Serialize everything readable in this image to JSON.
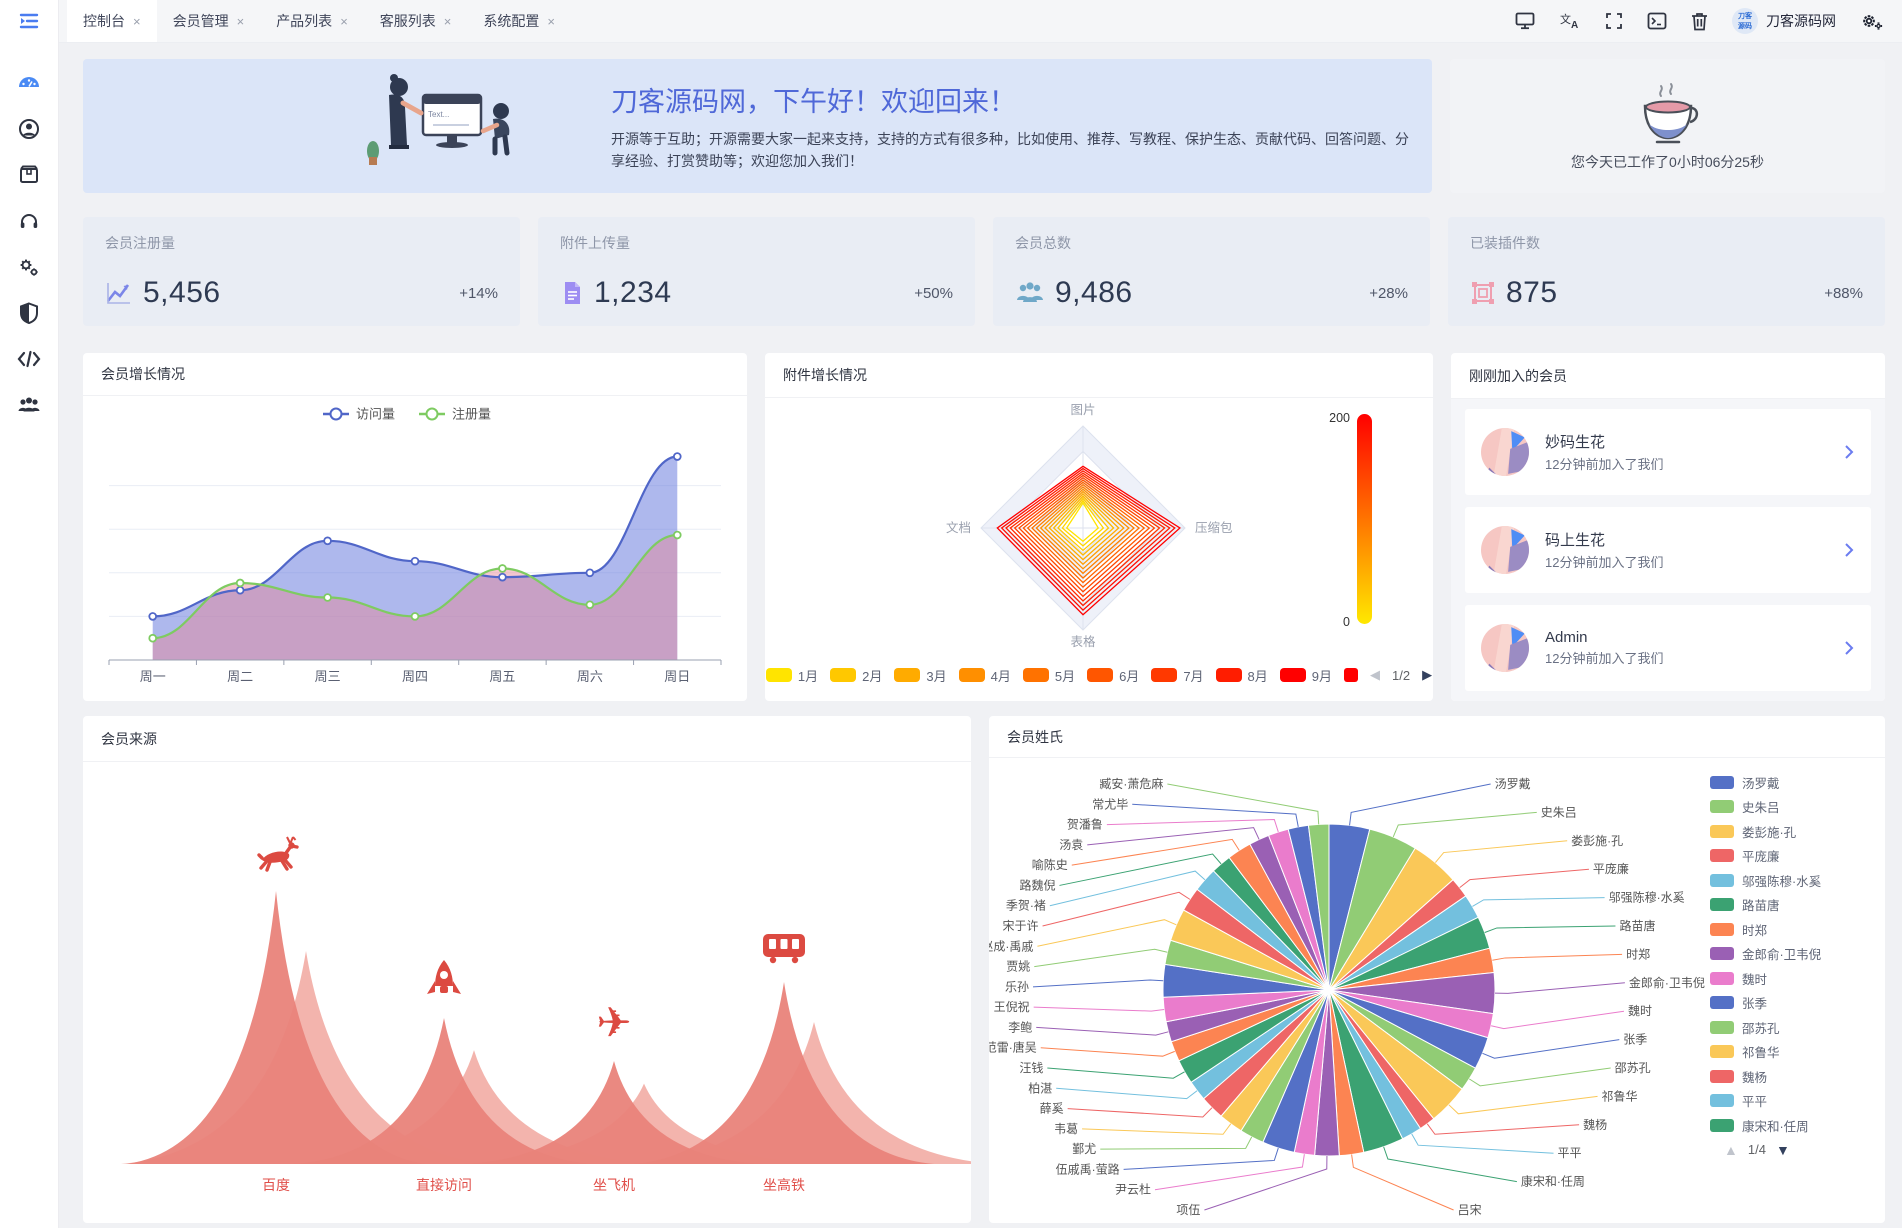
{
  "app": {
    "brand": "刀客源码网"
  },
  "sidebar": {
    "toggle_icon": "collapse-menu-icon",
    "items": [
      {
        "icon": "dashboard-icon",
        "active": true
      },
      {
        "icon": "user-icon",
        "active": false
      },
      {
        "icon": "package-icon",
        "active": false
      },
      {
        "icon": "headset-icon",
        "active": false
      },
      {
        "icon": "gears-icon",
        "active": false
      },
      {
        "icon": "shield-icon",
        "active": false
      },
      {
        "icon": "code-icon",
        "active": false
      },
      {
        "icon": "group-icon",
        "active": false
      }
    ]
  },
  "tabs": [
    {
      "label": "控制台",
      "close": "×",
      "active": true
    },
    {
      "label": "会员管理",
      "close": "×",
      "active": false
    },
    {
      "label": "产品列表",
      "close": "×",
      "active": false
    },
    {
      "label": "客服列表",
      "close": "×",
      "active": false
    },
    {
      "label": "系统配置",
      "close": "×",
      "active": false
    }
  ],
  "topbar": {
    "action_icons": [
      "monitor-icon",
      "translate-icon",
      "fullscreen-icon",
      "terminal-icon",
      "trash-icon",
      "settings-gears-icon"
    ],
    "brand": "刀客源码网"
  },
  "banner": {
    "title": "刀客源码网，下午好！欢迎回来！",
    "subtitle": "开源等于互助；开源需要大家一起来支持，支持的方式有很多种，比如使用、推荐、写教程、保护生态、贡献代码、回答问题、分享经验、打赏赞助等；欢迎您加入我们！"
  },
  "timer": {
    "text": "您今天已工作了0小时06分25秒",
    "icon": "coffee-cup-icon"
  },
  "stats": [
    {
      "title": "会员注册量",
      "value": "5,456",
      "delta": "+14%",
      "icon": "line-chart-icon",
      "color": "#7b86e8"
    },
    {
      "title": "附件上传量",
      "value": "1,234",
      "delta": "+50%",
      "icon": "file-icon",
      "color": "#9d8df2"
    },
    {
      "title": "会员总数",
      "value": "9,486",
      "delta": "+28%",
      "icon": "users-icon",
      "color": "#6fa8c8"
    },
    {
      "title": "已装插件数",
      "value": "875",
      "delta": "+88%",
      "icon": "plugin-icon",
      "color": "#ef9fb0"
    }
  ],
  "panels": {
    "growth": "会员增长情况",
    "attachment": "附件增长情况",
    "recent": "刚刚加入的会员",
    "source": "会员来源",
    "surname": "会员姓氏"
  },
  "members": [
    {
      "name": "妙码生花",
      "note": "12分钟前加入了我们"
    },
    {
      "name": "码上生花",
      "note": "12分钟前加入了我们"
    },
    {
      "name": "Admin",
      "note": "12分钟前加入了我们"
    }
  ],
  "chart_data": [
    {
      "id": "member-growth",
      "type": "area",
      "title": "会员增长情况",
      "categories": [
        "周一",
        "周二",
        "周三",
        "周四",
        "周五",
        "周六",
        "周日"
      ],
      "series": [
        {
          "name": "访问量",
          "color": "#5066c8",
          "fill": "rgba(108,125,222,0.55)",
          "values": [
            30,
            48,
            82,
            68,
            57,
            60,
            140
          ]
        },
        {
          "name": "注册量",
          "color": "#7ecb61",
          "fill": "rgba(233,130,148,0.45)",
          "values": [
            15,
            53,
            43,
            30,
            63,
            38,
            86
          ]
        }
      ],
      "ymax": 150,
      "grid": true,
      "legend_position": "top"
    },
    {
      "id": "attachment-growth",
      "type": "radar",
      "title": "附件增长情况",
      "indicators": [
        {
          "name": "图片",
          "max": 200
        },
        {
          "name": "压缩包",
          "max": 200
        },
        {
          "name": "表格",
          "max": 200
        },
        {
          "name": "文档",
          "max": 200
        }
      ],
      "months": [
        {
          "label": "1月",
          "values": [
            49,
            30,
            26,
            32
          ]
        },
        {
          "label": "2月",
          "values": [
            58,
            50,
            44,
            49
          ]
        },
        {
          "label": "3月",
          "values": [
            67,
            70,
            62,
            66
          ]
        },
        {
          "label": "4月",
          "values": [
            76,
            90,
            80,
            83
          ]
        },
        {
          "label": "5月",
          "values": [
            85,
            110,
            98,
            100
          ]
        },
        {
          "label": "6月",
          "values": [
            94,
            130,
            116,
            117
          ]
        },
        {
          "label": "7月",
          "values": [
            103,
            150,
            134,
            134
          ]
        },
        {
          "label": "8月",
          "values": [
            112,
            170,
            152,
            151
          ]
        },
        {
          "label": "9月",
          "values": [
            121,
            190,
            170,
            168
          ]
        }
      ],
      "colorbar": {
        "max": 200,
        "min": 0,
        "top_color": "#ff0000",
        "bottom_color": "#ffe800"
      },
      "pagination": {
        "current": "1/2",
        "prev": "◀",
        "next": "▶"
      }
    },
    {
      "id": "member-source",
      "type": "pictorial-peaks",
      "title": "会员来源",
      "categories": [
        "百度",
        "直接访问",
        "坐飞机",
        "坐高铁"
      ],
      "values": [
        273,
        146,
        103,
        182
      ],
      "icons": [
        "deer-icon",
        "rocket-icon",
        "plane-icon",
        "train-icon"
      ],
      "label_color": "#e04f4a",
      "peak_color": "#e9837a",
      "peak_bg_color": "#f1a79f"
    },
    {
      "id": "member-surname",
      "type": "pie",
      "title": "会员姓氏",
      "palette": [
        "#5470c6",
        "#91cc75",
        "#fac858",
        "#ee6666",
        "#73c0de",
        "#3ba272",
        "#fc8452",
        "#9a60b4",
        "#ea7ccc"
      ],
      "items": [
        {
          "name": "汤罗戴",
          "value": 5
        },
        {
          "name": "史朱吕",
          "value": 6
        },
        {
          "name": "娄彭施·孔",
          "value": 6
        },
        {
          "name": "平庞廉",
          "value": 2.5
        },
        {
          "name": "邬强陈穆·水奚",
          "value": 3
        },
        {
          "name": "路苗唐",
          "value": 4
        },
        {
          "name": "时郑",
          "value": 3
        },
        {
          "name": "金郎俞·卫韦倪",
          "value": 5
        },
        {
          "name": "魏时",
          "value": 3
        },
        {
          "name": "张季",
          "value": 4
        },
        {
          "name": "邵苏孔",
          "value": 3
        },
        {
          "name": "祁鲁华",
          "value": 5
        },
        {
          "name": "魏杨",
          "value": 2
        },
        {
          "name": "平平",
          "value": 2.5
        },
        {
          "name": "康宋和·任周",
          "value": 5
        },
        {
          "name": "吕宋",
          "value": 3
        },
        {
          "name": "项伍",
          "value": 3
        },
        {
          "name": "尹云杜",
          "value": 2.5
        },
        {
          "name": "伍戚禹·萤路",
          "value": 4
        },
        {
          "name": "鄞尤",
          "value": 3
        },
        {
          "name": "韦葛",
          "value": 3
        },
        {
          "name": "薛奚",
          "value": 3
        },
        {
          "name": "柏湛",
          "value": 2.5
        },
        {
          "name": "汪钱",
          "value": 3
        },
        {
          "name": "谈范雷·唐吴",
          "value": 2.5
        },
        {
          "name": "李鲍",
          "value": 2.5
        },
        {
          "name": "王倪祝",
          "value": 3
        },
        {
          "name": "乐孙",
          "value": 4
        },
        {
          "name": "贾姚",
          "value": 3
        },
        {
          "name": "赵成·禹戚",
          "value": 4
        },
        {
          "name": "宋于许",
          "value": 3
        },
        {
          "name": "季贺·褚",
          "value": 3
        },
        {
          "name": "路魏倪",
          "value": 2.5
        },
        {
          "name": "喻陈史",
          "value": 3
        },
        {
          "name": "汤袁",
          "value": 2.5
        },
        {
          "name": "贺潘鲁",
          "value": 2.5
        },
        {
          "name": "常尤毕",
          "value": 2.5
        },
        {
          "name": "臧安·萧危麻",
          "value": 2.5
        }
      ],
      "legend": {
        "visible_items": 15,
        "pagination": "1/4",
        "up": "▲",
        "down": "▼"
      }
    }
  ]
}
